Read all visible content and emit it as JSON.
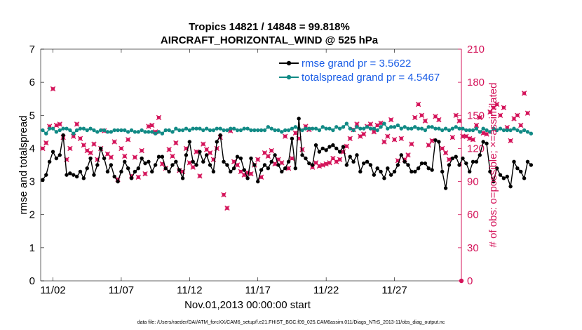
{
  "chart_data": {
    "type": "line",
    "title": "Tropics 14821 / 14848 = 99.818%",
    "subtitle": "AIRCRAFT_HORIZONTAL_WIND @ 525 hPa",
    "xlabel": "Nov.01,2013 00:00:00 start",
    "ylabel": "rmse and totalspread",
    "ylabel_right": "# of obs: o=possible; ×=assimilated",
    "footnote": "data file: /Users/raeder/DAI/ATM_forcXX/CAM6_setup/f.e21.FHIST_BGC.f09_025.CAM6assim.011/Diags_NTrS_2013-11/obs_diag_output.nc",
    "xlim": [
      0.6,
      31.4
    ],
    "ylim": [
      0,
      7
    ],
    "ylim_right": [
      0,
      210
    ],
    "x_ticks": [
      1.5,
      6.5,
      11.5,
      16.5,
      21.5,
      26.5
    ],
    "x_tick_labels": [
      "11/02",
      "11/07",
      "11/12",
      "11/17",
      "11/22",
      "11/27"
    ],
    "y_ticks": [
      0,
      1,
      2,
      3,
      4,
      5,
      6,
      7
    ],
    "y_ticks_right": [
      0,
      30,
      60,
      90,
      120,
      150,
      180,
      210
    ],
    "legend": [
      {
        "label": "rmse grand pr = 3.5622",
        "color": "#000000"
      },
      {
        "label": "totalspread grand pr = 4.5467",
        "color": "#118a85"
      }
    ],
    "series": [
      {
        "name": "rmse",
        "color": "#000000",
        "axis": "left",
        "x_start": 0.75,
        "x_step": 0.25,
        "values": [
          3.05,
          3.2,
          3.6,
          3.9,
          3.7,
          3.8,
          4.4,
          3.2,
          3.25,
          3.2,
          3.15,
          3.3,
          3.1,
          3.4,
          3.7,
          3.2,
          3.5,
          4.0,
          3.7,
          3.3,
          3.5,
          3.15,
          3.0,
          3.3,
          3.6,
          3.4,
          3.1,
          3.3,
          3.4,
          3.7,
          3.55,
          3.6,
          3.3,
          3.5,
          3.75,
          3.75,
          3.4,
          3.3,
          3.5,
          3.6,
          3.35,
          3.1,
          3.8,
          4.2,
          3.6,
          3.5,
          3.9,
          3.6,
          3.8,
          3.5,
          3.3,
          4.2,
          4.4,
          3.6,
          3.5,
          3.3,
          3.4,
          3.75,
          3.7,
          3.35,
          3.1,
          3.7,
          3.5,
          3.0,
          3.35,
          3.5,
          3.4,
          3.6,
          3.8,
          3.5,
          3.3,
          3.4,
          3.6,
          4.3,
          3.4,
          4.9,
          3.8,
          3.7,
          3.55,
          3.5,
          4.1,
          3.9,
          4.0,
          3.95,
          4.05,
          4.1,
          4.0,
          3.9,
          4.05,
          3.5,
          3.75,
          3.6,
          3.8,
          3.3,
          3.55,
          3.6,
          3.5,
          3.2,
          3.4,
          3.3,
          3.1,
          3.4,
          3.2,
          3.3,
          3.5,
          3.8,
          3.6,
          3.5,
          3.3,
          3.3,
          3.4,
          3.55,
          3.55,
          3.4,
          3.35,
          4.25,
          4.2,
          3.3,
          2.8,
          3.5,
          3.7,
          3.75,
          3.5,
          3.7,
          3.55,
          3.3,
          3.6,
          3.6,
          3.8,
          4.2,
          4.15,
          3.3,
          3.0,
          3.4,
          3.2,
          3.1,
          3.15,
          2.85,
          3.6,
          3.4,
          3.3,
          3.1,
          3.6,
          3.5
        ]
      },
      {
        "name": "totalspread",
        "color": "#118a85",
        "axis": "left",
        "x_start": 0.75,
        "x_step": 0.25,
        "values": [
          4.55,
          4.45,
          4.6,
          4.6,
          4.5,
          4.55,
          4.6,
          4.6,
          4.55,
          4.45,
          4.55,
          4.6,
          4.6,
          4.55,
          4.6,
          4.55,
          4.5,
          4.55,
          4.55,
          4.5,
          4.5,
          4.55,
          4.55,
          4.55,
          4.55,
          4.5,
          4.55,
          4.5,
          4.5,
          4.55,
          4.5,
          4.5,
          4.5,
          4.45,
          4.5,
          4.45,
          4.55,
          4.55,
          4.5,
          4.6,
          4.55,
          4.55,
          4.6,
          4.55,
          4.6,
          4.6,
          4.6,
          4.55,
          4.6,
          4.55,
          4.55,
          4.6,
          4.6,
          4.55,
          4.55,
          4.6,
          4.6,
          4.55,
          4.55,
          4.6,
          4.6,
          4.55,
          4.55,
          4.55,
          4.55,
          4.55,
          4.65,
          4.6,
          4.55,
          4.55,
          4.5,
          4.55,
          4.55,
          4.6,
          4.65,
          4.6,
          4.55,
          4.6,
          4.6,
          4.6,
          4.6,
          4.55,
          4.65,
          4.6,
          4.6,
          4.55,
          4.65,
          4.6,
          4.65,
          4.75,
          4.6,
          4.55,
          4.65,
          4.6,
          4.6,
          4.65,
          4.6,
          4.6,
          4.55,
          4.65,
          4.75,
          4.6,
          4.65,
          4.65,
          4.7,
          4.6,
          4.65,
          4.6,
          4.6,
          4.65,
          4.6,
          4.6,
          4.55,
          4.65,
          4.65,
          4.6,
          4.6,
          4.55,
          4.6,
          4.55,
          4.6,
          4.65,
          4.6,
          4.6,
          4.55,
          4.55,
          4.55,
          4.6,
          4.5,
          4.6,
          4.55,
          4.5,
          4.6,
          4.55,
          4.6,
          4.55,
          4.55,
          4.55,
          4.6,
          4.55,
          4.5,
          4.55,
          4.5,
          4.45
        ]
      },
      {
        "name": "obs possible",
        "color": "#d4145a",
        "axis": "right",
        "x_start": 0.75,
        "x_step": 0.25,
        "values": [
          120,
          125,
          140,
          174,
          141,
          142,
          130,
          110,
          120,
          131,
          142,
          129,
          123,
          118,
          116,
          124,
          110,
          120,
          136,
          115,
          112,
          126,
          92,
          120,
          113,
          128,
          95,
          112,
          94,
          118,
          97,
          140,
          141,
          135,
          148,
          106,
          102,
          119,
          113,
          125,
          100,
          99,
          120,
          107,
          103,
          117,
          95,
          124,
          119,
          116,
          110,
          120,
          130,
          78,
          66,
          136,
          108,
          105,
          99,
          96,
          98,
          97,
          105,
          110,
          94,
          116,
          113,
          118,
          106,
          110,
          107,
          131,
          102,
          111,
          134,
          129,
          119,
          140,
          137,
          103,
          107,
          104,
          105,
          106,
          107,
          111,
          108,
          110,
          117,
          122,
          129,
          137,
          142,
          131,
          133,
          140,
          142,
          135,
          141,
          143,
          126,
          131,
          146,
          128,
          109,
          129,
          110,
          114,
          124,
          148,
          160,
          150,
          145,
          123,
          127,
          149,
          146,
          120,
          116,
          110,
          130,
          150,
          145,
          131,
          131,
          129,
          128,
          141,
          148,
          134,
          133,
          153,
          157,
          160,
          150,
          157,
          139,
          127,
          147,
          150,
          141,
          170,
          152
        ]
      }
    ]
  }
}
